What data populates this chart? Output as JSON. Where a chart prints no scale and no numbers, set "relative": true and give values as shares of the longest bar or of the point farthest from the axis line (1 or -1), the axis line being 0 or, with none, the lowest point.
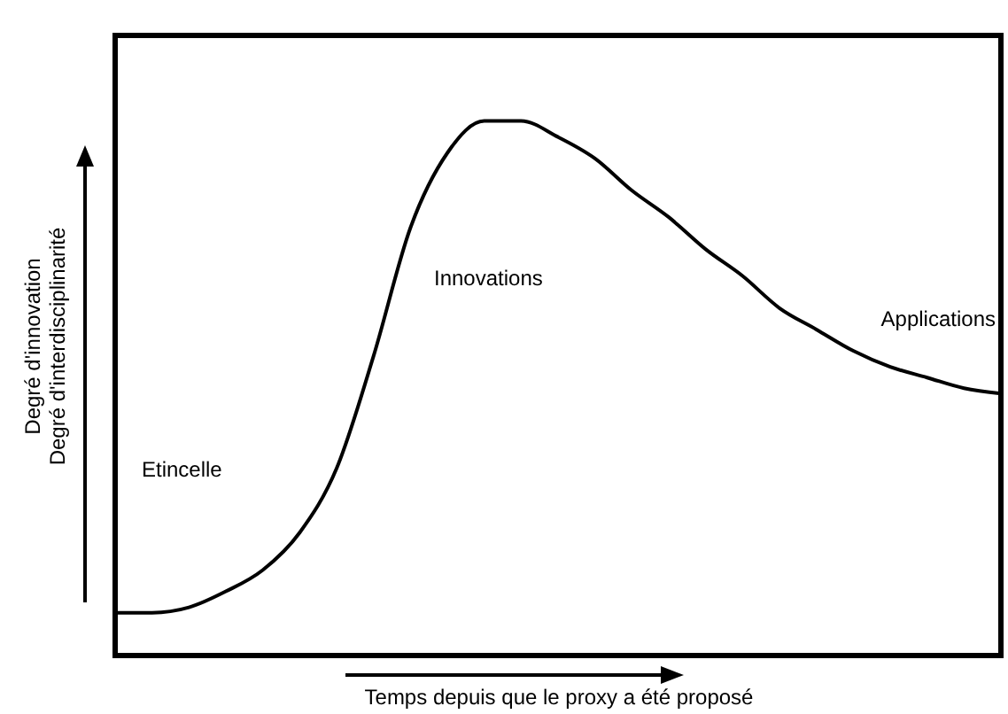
{
  "chart_data": {
    "type": "line",
    "relative": true,
    "xlabel": "Temps depuis que le proxy a été proposé",
    "ylabel": "Degré d'innovation\nDegré d'interdisciplinarité",
    "categories": [
      null,
      null,
      null,
      null,
      null,
      null,
      null,
      null,
      null,
      null,
      null,
      null,
      null,
      null,
      null,
      null,
      null,
      null,
      null,
      null,
      null,
      null,
      null,
      null,
      null
    ],
    "series": [
      {
        "color": "#000000",
        "values": [
          0.08,
          0.08,
          0.09,
          0.12,
          0.16,
          0.23,
          0.35,
          0.56,
          0.8,
          0.94,
          1,
          1,
          0.97,
          0.93,
          0.87,
          0.82,
          0.76,
          0.71,
          0.65,
          0.61,
          0.57,
          0.54,
          0.52,
          0.5,
          0.49
        ]
      }
    ],
    "annotations": [
      "Etincelle",
      "Innovations",
      "Applications"
    ],
    "grid": false,
    "marker": "none",
    "line_style": "solid"
  }
}
